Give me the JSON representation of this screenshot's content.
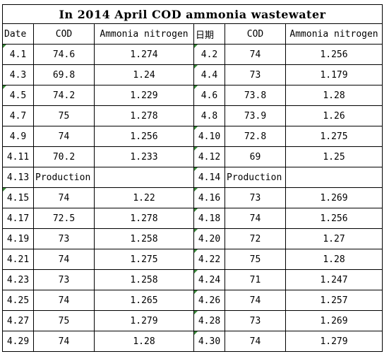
{
  "title": "In 2014 April COD ammonia wastewater",
  "headers": [
    "Date",
    "COD",
    "Ammonia nitrogen",
    "日期",
    "COD",
    "Ammonia nitrogen"
  ],
  "rows": [
    [
      "4.1",
      "74.6",
      "1.274",
      "4.2",
      "74",
      "1.256"
    ],
    [
      "4.3",
      "69.8",
      "1.24",
      "4.4",
      "73",
      "1.179"
    ],
    [
      "4.5",
      "74.2",
      "1.229",
      "4.6",
      "73.8",
      "1.28"
    ],
    [
      "4.7",
      "75",
      "1.278",
      "4.8",
      "73.9",
      "1.26"
    ],
    [
      "4.9",
      "74",
      "1.256",
      "4.10",
      "72.8",
      "1.275"
    ],
    [
      "4.11",
      "70.2",
      "1.233",
      "4.12",
      "69",
      "1.25"
    ],
    [
      "4.13",
      "Production",
      "",
      "4.14",
      "Production",
      ""
    ],
    [
      "4.15",
      "74",
      "1.22",
      "4.16",
      "73",
      "1.269"
    ],
    [
      "4.17",
      "72.5",
      "1.278",
      "4.18",
      "74",
      "1.256"
    ],
    [
      "4.19",
      "73",
      "1.258",
      "4.20",
      "72",
      "1.27"
    ],
    [
      "4.21",
      "74",
      "1.275",
      "4.22",
      "75",
      "1.28"
    ],
    [
      "4.23",
      "73",
      "1.258",
      "4.24",
      "71",
      "1.247"
    ],
    [
      "4.25",
      "74",
      "1.265",
      "4.26",
      "74",
      "1.257"
    ],
    [
      "4.27",
      "75",
      "1.279",
      "4.28",
      "73",
      "1.269"
    ],
    [
      "4.29",
      "74",
      "1.28",
      "4.30",
      "74",
      "1.279"
    ]
  ]
}
